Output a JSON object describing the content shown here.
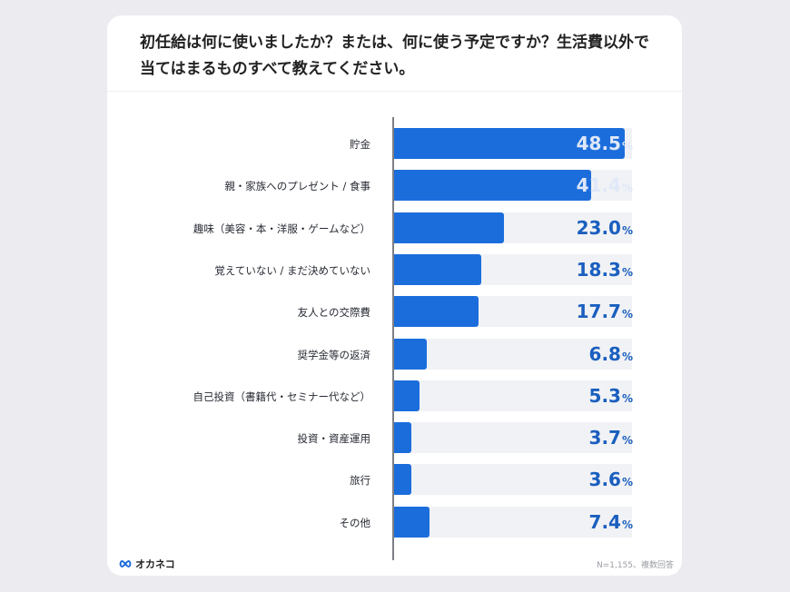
{
  "title": "初任給は何に使いましたか？または、何に使う予定ですか？生活費以外で当てはまるものすべて教えてください。",
  "brand": "オカネコ",
  "note": "N=1,155、複数回答",
  "colors": {
    "bar": "#1c6ddc",
    "track": "#f1f2f5",
    "value_text": "#1a5fbf"
  },
  "chart_data": {
    "type": "bar",
    "orientation": "horizontal",
    "categories": [
      "貯金",
      "親・家族へのプレゼント / 食事",
      "趣味（美容・本・洋服・ゲームなど）",
      "覚えていない / まだ決めていない",
      "友人との交際費",
      "奨学金等の返済",
      "自己投資（書籍代・セミナー代など）",
      "投資・資産運用",
      "旅行",
      "その他"
    ],
    "values": [
      48.5,
      41.4,
      23.0,
      18.3,
      17.7,
      6.8,
      5.3,
      3.7,
      3.6,
      7.4
    ],
    "value_labels": [
      "48.5",
      "41.4",
      "23.0",
      "18.3",
      "17.7",
      "6.8",
      "5.3",
      "3.7",
      "3.6",
      "7.4"
    ],
    "unit": "%",
    "xlim": [
      0,
      50
    ]
  }
}
